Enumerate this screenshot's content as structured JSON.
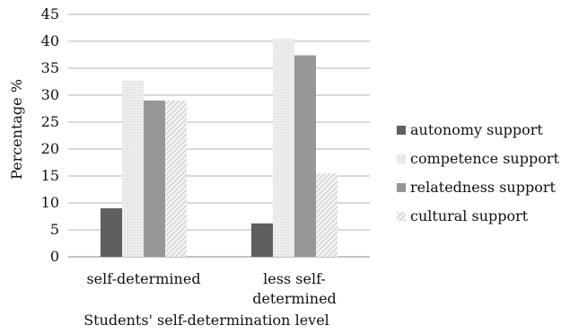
{
  "chart_data": {
    "type": "bar",
    "title": "",
    "xlabel": "Students' self-determination level",
    "ylabel": "Percentage %",
    "ylim": [
      0,
      45
    ],
    "yticks": [
      0,
      5,
      10,
      15,
      20,
      25,
      30,
      35,
      40,
      45
    ],
    "grid": true,
    "legend_position": "right",
    "categories": [
      [
        "self-determined"
      ],
      [
        "less self-",
        "determined"
      ]
    ],
    "series": [
      {
        "name": "autonomy support",
        "values": [
          9.0,
          6.2
        ],
        "color": "#5f5f5f",
        "pattern": "solid"
      },
      {
        "name": "competence support",
        "values": [
          32.7,
          40.5
        ],
        "color": "#e6e6e6",
        "pattern": "dots"
      },
      {
        "name": "relatedness support",
        "values": [
          29.0,
          37.4
        ],
        "color": "#979797",
        "pattern": "solid"
      },
      {
        "name": "cultural support",
        "values": [
          29.0,
          15.5
        ],
        "color": "#d2d2d2",
        "pattern": "hatch"
      }
    ]
  }
}
